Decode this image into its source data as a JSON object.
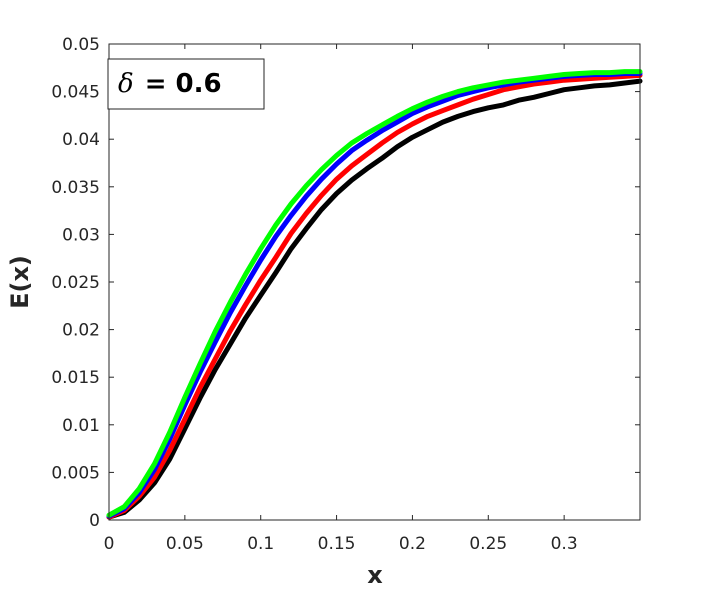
{
  "chart_data": {
    "type": "line",
    "title": "",
    "xlabel": "x",
    "ylabel": "E(x)",
    "xlim": [
      0,
      0.35
    ],
    "ylim": [
      0,
      0.05
    ],
    "x_ticks": [
      {
        "value": 0,
        "label": "0"
      },
      {
        "value": 0.05,
        "label": "0.05"
      },
      {
        "value": 0.1,
        "label": "0.1"
      },
      {
        "value": 0.15,
        "label": "0.15"
      },
      {
        "value": 0.2,
        "label": "0.2"
      },
      {
        "value": 0.25,
        "label": "0.25"
      },
      {
        "value": 0.3,
        "label": "0.3"
      }
    ],
    "y_ticks": [
      {
        "value": 0,
        "label": "0"
      },
      {
        "value": 0.005,
        "label": "0.005"
      },
      {
        "value": 0.01,
        "label": "0.01"
      },
      {
        "value": 0.015,
        "label": "0.015"
      },
      {
        "value": 0.02,
        "label": "0.02"
      },
      {
        "value": 0.025,
        "label": "0.025"
      },
      {
        "value": 0.03,
        "label": "0.03"
      },
      {
        "value": 0.035,
        "label": "0.035"
      },
      {
        "value": 0.04,
        "label": "0.04"
      },
      {
        "value": 0.045,
        "label": "0.045"
      },
      {
        "value": 0.05,
        "label": "0.05"
      }
    ],
    "grid": false,
    "legend": {
      "placement": "top-left",
      "symbol": "δ",
      "text": " = 0.6"
    },
    "series": [
      {
        "color": "#000000",
        "x": [
          0,
          0.01,
          0.02,
          0.03,
          0.04,
          0.05,
          0.06,
          0.07,
          0.08,
          0.09,
          0.1,
          0.11,
          0.12,
          0.13,
          0.14,
          0.15,
          0.16,
          0.17,
          0.18,
          0.19,
          0.2,
          0.21,
          0.22,
          0.23,
          0.24,
          0.25,
          0.26,
          0.27,
          0.28,
          0.29,
          0.3,
          0.31,
          0.32,
          0.33,
          0.34,
          0.35
        ],
        "y": [
          0.0003,
          0.0008,
          0.0021,
          0.0039,
          0.0064,
          0.0096,
          0.0128,
          0.0158,
          0.0185,
          0.0212,
          0.0236,
          0.026,
          0.0285,
          0.0306,
          0.0326,
          0.0343,
          0.0357,
          0.0369,
          0.038,
          0.0392,
          0.0402,
          0.041,
          0.0418,
          0.0424,
          0.0429,
          0.0433,
          0.0436,
          0.0441,
          0.0444,
          0.0448,
          0.0452,
          0.0454,
          0.0456,
          0.0457,
          0.0459,
          0.0461
        ]
      },
      {
        "color": "#ff0000",
        "x": [
          0,
          0.01,
          0.02,
          0.03,
          0.04,
          0.05,
          0.06,
          0.07,
          0.08,
          0.09,
          0.1,
          0.11,
          0.12,
          0.13,
          0.14,
          0.15,
          0.16,
          0.17,
          0.18,
          0.19,
          0.2,
          0.21,
          0.22,
          0.23,
          0.24,
          0.25,
          0.26,
          0.27,
          0.28,
          0.29,
          0.3,
          0.31,
          0.32,
          0.33,
          0.34,
          0.35
        ],
        "y": [
          0.0003,
          0.001,
          0.0025,
          0.0045,
          0.0073,
          0.0106,
          0.0139,
          0.0169,
          0.0199,
          0.0226,
          0.0252,
          0.0276,
          0.0301,
          0.0322,
          0.0341,
          0.0358,
          0.0372,
          0.0384,
          0.0396,
          0.0407,
          0.0416,
          0.0424,
          0.043,
          0.0436,
          0.0442,
          0.0447,
          0.0452,
          0.0455,
          0.0458,
          0.046,
          0.0462,
          0.0463,
          0.0464,
          0.0465,
          0.0466,
          0.0467
        ]
      },
      {
        "color": "#0000ff",
        "x": [
          0,
          0.01,
          0.02,
          0.03,
          0.04,
          0.05,
          0.06,
          0.07,
          0.08,
          0.09,
          0.1,
          0.11,
          0.12,
          0.13,
          0.14,
          0.15,
          0.16,
          0.17,
          0.18,
          0.19,
          0.2,
          0.21,
          0.22,
          0.23,
          0.24,
          0.25,
          0.26,
          0.27,
          0.28,
          0.29,
          0.3,
          0.31,
          0.32,
          0.33,
          0.34,
          0.35
        ],
        "y": [
          0.0004,
          0.0012,
          0.0029,
          0.0053,
          0.0085,
          0.0121,
          0.0155,
          0.0187,
          0.0218,
          0.0246,
          0.0273,
          0.0298,
          0.032,
          0.034,
          0.0358,
          0.0374,
          0.0388,
          0.0399,
          0.0409,
          0.0418,
          0.0427,
          0.0434,
          0.044,
          0.0446,
          0.045,
          0.0454,
          0.0457,
          0.046,
          0.0462,
          0.0464,
          0.0466,
          0.0467,
          0.0468,
          0.0468,
          0.0469,
          0.0469
        ]
      },
      {
        "color": "#00ff00",
        "x": [
          0,
          0.01,
          0.02,
          0.03,
          0.04,
          0.05,
          0.06,
          0.07,
          0.08,
          0.09,
          0.1,
          0.11,
          0.12,
          0.13,
          0.14,
          0.15,
          0.16,
          0.17,
          0.18,
          0.19,
          0.2,
          0.21,
          0.22,
          0.23,
          0.24,
          0.25,
          0.26,
          0.27,
          0.28,
          0.29,
          0.3,
          0.31,
          0.32,
          0.33,
          0.34,
          0.35
        ],
        "y": [
          0.0005,
          0.0014,
          0.0033,
          0.0059,
          0.0092,
          0.0129,
          0.0164,
          0.0198,
          0.0229,
          0.0258,
          0.0285,
          0.031,
          0.0332,
          0.0351,
          0.0368,
          0.0383,
          0.0396,
          0.0406,
          0.0415,
          0.0424,
          0.0432,
          0.0439,
          0.0445,
          0.045,
          0.0454,
          0.0457,
          0.046,
          0.0462,
          0.0464,
          0.0466,
          0.0468,
          0.0469,
          0.047,
          0.047,
          0.0471,
          0.0471
        ]
      }
    ]
  }
}
